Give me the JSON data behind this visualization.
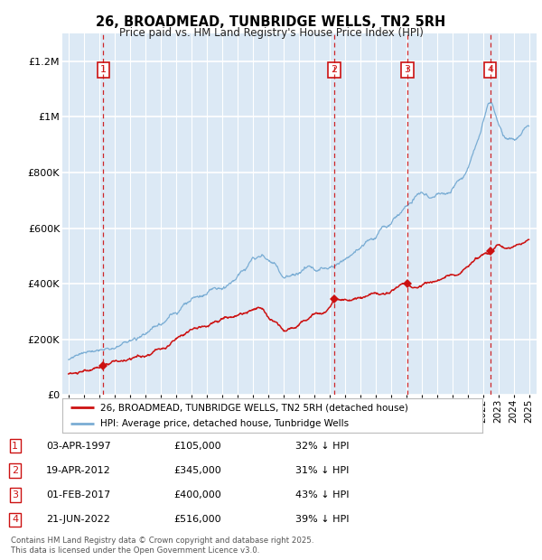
{
  "title": "26, BROADMEAD, TUNBRIDGE WELLS, TN2 5RH",
  "subtitle": "Price paid vs. HM Land Registry's House Price Index (HPI)",
  "background_color": "#dce9f5",
  "plot_bg_color": "#dce9f5",
  "ylim": [
    0,
    1300000
  ],
  "yticks": [
    0,
    200000,
    400000,
    600000,
    800000,
    1000000,
    1200000
  ],
  "ytick_labels": [
    "£0",
    "£200K",
    "£400K",
    "£600K",
    "£800K",
    "£1M",
    "£1.2M"
  ],
  "hpi_color": "#7aadd4",
  "price_color": "#cc1111",
  "dashed_line_color": "#cc1111",
  "sale_points": [
    {
      "label": "1",
      "date_num": 1997.27,
      "price": 105000,
      "date_str": "03-APR-1997",
      "price_str": "£105,000",
      "hpi_note": "32% ↓ HPI"
    },
    {
      "label": "2",
      "date_num": 2012.3,
      "price": 345000,
      "date_str": "19-APR-2012",
      "price_str": "£345,000",
      "hpi_note": "31% ↓ HPI"
    },
    {
      "label": "3",
      "date_num": 2017.08,
      "price": 400000,
      "date_str": "01-FEB-2017",
      "price_str": "£400,000",
      "hpi_note": "43% ↓ HPI"
    },
    {
      "label": "4",
      "date_num": 2022.47,
      "price": 516000,
      "date_str": "21-JUN-2022",
      "price_str": "£516,000",
      "hpi_note": "39% ↓ HPI"
    }
  ],
  "legend_line1": "26, BROADMEAD, TUNBRIDGE WELLS, TN2 5RH (detached house)",
  "legend_line2": "HPI: Average price, detached house, Tunbridge Wells",
  "footer": "Contains HM Land Registry data © Crown copyright and database right 2025.\nThis data is licensed under the Open Government Licence v3.0.",
  "table_rows": [
    [
      "1",
      "03-APR-1997",
      "£105,000",
      "32% ↓ HPI"
    ],
    [
      "2",
      "19-APR-2012",
      "£345,000",
      "31% ↓ HPI"
    ],
    [
      "3",
      "01-FEB-2017",
      "£400,000",
      "43% ↓ HPI"
    ],
    [
      "4",
      "21-JUN-2022",
      "£516,000",
      "39% ↓ HPI"
    ]
  ]
}
